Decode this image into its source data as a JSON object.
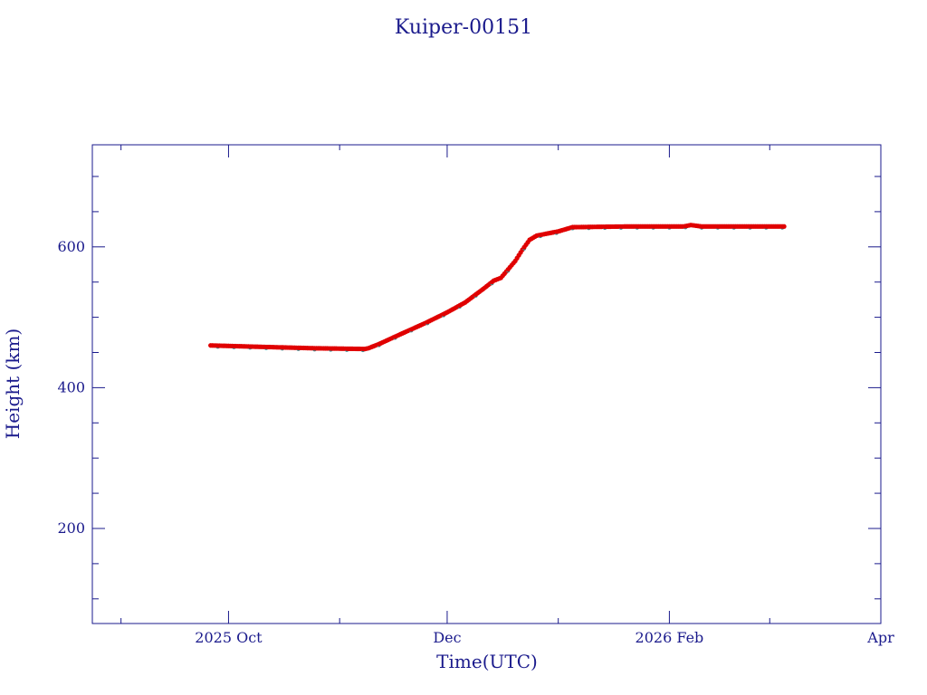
{
  "chart_data": {
    "type": "scatter",
    "title": "Kuiper-00151",
    "xlabel": "Time(UTC)",
    "ylabel": "Height (km)",
    "x_axis_type": "date",
    "xlim": [
      "2025-08-24",
      "2026-04-01"
    ],
    "ylim": [
      65,
      745
    ],
    "x_ticks": [
      {
        "date": "2025-10-01",
        "label": "2025 Oct"
      },
      {
        "date": "2025-12-01",
        "label": "Dec"
      },
      {
        "date": "2026-02-01",
        "label": "2026 Feb"
      },
      {
        "date": "2026-04-01",
        "label": "Apr"
      }
    ],
    "x_minor_ticks": [
      "2025-09-01",
      "2025-11-01",
      "2026-01-01",
      "2026-03-01"
    ],
    "y_ticks": [
      200,
      400,
      600
    ],
    "y_minor_step": 50,
    "grid": false,
    "colors": {
      "axis": "#1a1a8c",
      "marker": "#e00000",
      "marker_secondary": "#3a9aa0"
    },
    "series": [
      {
        "values": [
          {
            "date": "2025-09-26",
            "y": 460
          },
          {
            "date": "2025-10-10",
            "y": 458
          },
          {
            "date": "2025-10-25",
            "y": 456
          },
          {
            "date": "2025-11-08",
            "y": 455
          },
          {
            "date": "2025-11-09",
            "y": 456
          },
          {
            "date": "2025-11-12",
            "y": 462
          },
          {
            "date": "2025-11-18",
            "y": 476
          },
          {
            "date": "2025-11-25",
            "y": 492
          },
          {
            "date": "2025-12-01",
            "y": 507
          },
          {
            "date": "2025-12-06",
            "y": 521
          },
          {
            "date": "2025-12-11",
            "y": 540
          },
          {
            "date": "2025-12-14",
            "y": 552
          },
          {
            "date": "2025-12-16",
            "y": 556
          },
          {
            "date": "2025-12-20",
            "y": 580
          },
          {
            "date": "2025-12-22",
            "y": 596
          },
          {
            "date": "2025-12-24",
            "y": 610
          },
          {
            "date": "2025-12-26",
            "y": 616
          },
          {
            "date": "2026-01-01",
            "y": 622
          },
          {
            "date": "2026-01-05",
            "y": 628
          },
          {
            "date": "2026-01-20",
            "y": 629
          },
          {
            "date": "2026-02-05",
            "y": 629
          },
          {
            "date": "2026-02-07",
            "y": 631
          },
          {
            "date": "2026-02-10",
            "y": 629
          },
          {
            "date": "2026-03-05",
            "y": 629
          }
        ]
      }
    ]
  }
}
